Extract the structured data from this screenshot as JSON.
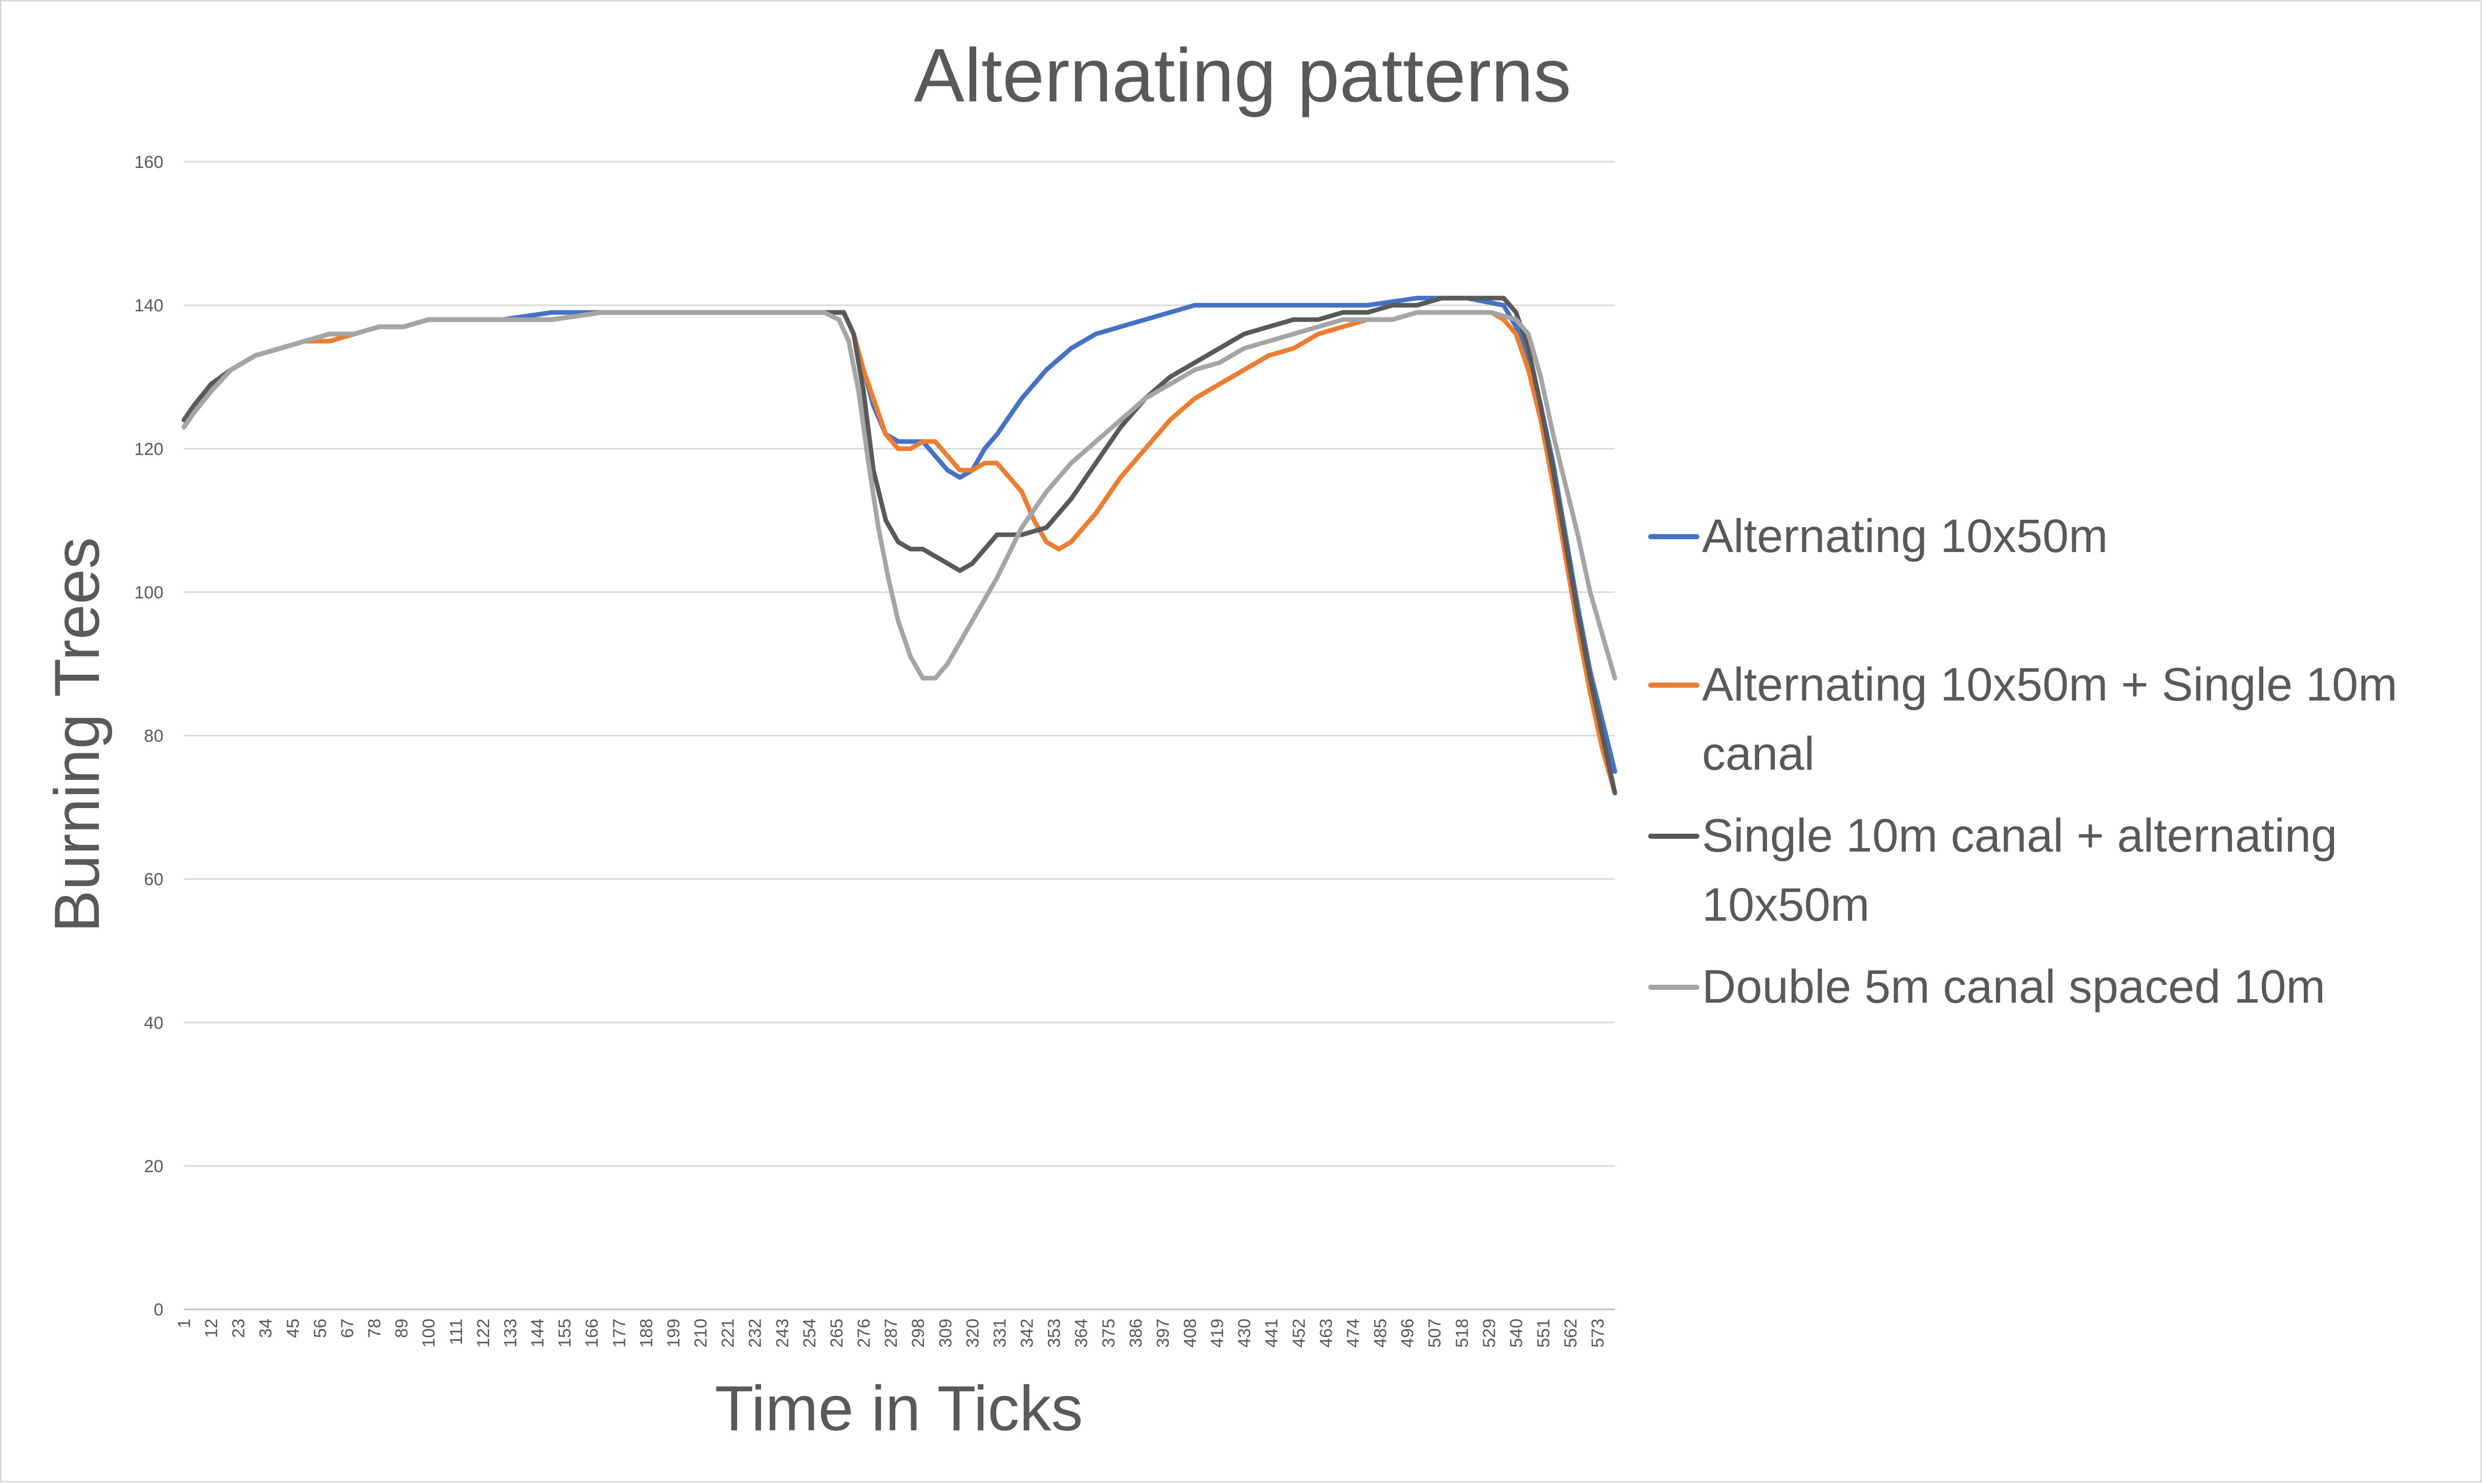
{
  "chart_data": {
    "type": "line",
    "title": "Alternating patterns",
    "xlabel": "Time in Ticks",
    "ylabel": "Burning Trees",
    "ylim": [
      0,
      160
    ],
    "xlim": [
      1,
      580
    ],
    "yticks": [
      0,
      20,
      40,
      60,
      80,
      100,
      120,
      140,
      160
    ],
    "xticks": [
      1,
      12,
      23,
      34,
      45,
      56,
      67,
      78,
      89,
      100,
      111,
      122,
      133,
      144,
      155,
      166,
      177,
      188,
      199,
      210,
      221,
      232,
      243,
      254,
      265,
      276,
      287,
      298,
      309,
      320,
      331,
      342,
      353,
      364,
      375,
      386,
      397,
      408,
      419,
      430,
      441,
      452,
      463,
      474,
      485,
      496,
      507,
      518,
      529,
      540,
      551,
      562,
      573
    ],
    "grid": true,
    "legend_position": "right",
    "series": [
      {
        "name": "Alternating 10x50m",
        "color": "#4472C4",
        "x": [
          1,
          5,
          12,
          20,
          30,
          40,
          50,
          60,
          70,
          80,
          90,
          100,
          110,
          130,
          150,
          170,
          200,
          230,
          260,
          268,
          272,
          276,
          280,
          285,
          290,
          300,
          305,
          310,
          315,
          320,
          325,
          330,
          340,
          350,
          360,
          370,
          380,
          390,
          400,
          410,
          420,
          440,
          460,
          480,
          500,
          520,
          535,
          540,
          545,
          550,
          555,
          560,
          565,
          570,
          575,
          580
        ],
        "y": [
          123,
          125,
          128,
          131,
          133,
          134,
          135,
          136,
          136,
          137,
          137,
          138,
          138,
          138,
          139,
          139,
          139,
          139,
          139,
          139,
          136,
          131,
          126,
          122,
          121,
          121,
          119,
          117,
          116,
          117,
          120,
          122,
          127,
          131,
          134,
          136,
          137,
          138,
          139,
          140,
          140,
          140,
          140,
          140,
          141,
          141,
          140,
          137,
          132,
          126,
          118,
          108,
          98,
          89,
          82,
          75
        ]
      },
      {
        "name": "Alternating 10x50m + Single 10m canal",
        "color": "#ED7D31",
        "x": [
          1,
          5,
          12,
          20,
          30,
          40,
          50,
          60,
          70,
          80,
          90,
          100,
          110,
          130,
          150,
          170,
          200,
          230,
          260,
          268,
          272,
          276,
          280,
          285,
          290,
          295,
          300,
          305,
          310,
          315,
          320,
          325,
          330,
          340,
          345,
          350,
          355,
          360,
          365,
          370,
          380,
          390,
          400,
          410,
          420,
          430,
          440,
          450,
          460,
          470,
          480,
          490,
          500,
          510,
          520,
          530,
          535,
          540,
          545,
          550,
          555,
          560,
          565,
          570,
          575,
          580
        ],
        "y": [
          123,
          125,
          128,
          131,
          133,
          134,
          135,
          135,
          136,
          137,
          137,
          138,
          138,
          138,
          138,
          139,
          139,
          139,
          139,
          139,
          136,
          131,
          127,
          122,
          120,
          120,
          121,
          121,
          119,
          117,
          117,
          118,
          118,
          114,
          110,
          107,
          106,
          107,
          109,
          111,
          116,
          120,
          124,
          127,
          129,
          131,
          133,
          134,
          136,
          137,
          138,
          138,
          139,
          139,
          139,
          139,
          138,
          136,
          131,
          124,
          115,
          105,
          95,
          86,
          78,
          72
        ]
      },
      {
        "name": "Single 10m canal + alternating 10x50m",
        "color": "#595959",
        "x": [
          1,
          5,
          12,
          20,
          30,
          40,
          50,
          60,
          70,
          80,
          90,
          100,
          110,
          130,
          150,
          170,
          200,
          230,
          260,
          268,
          272,
          276,
          280,
          285,
          290,
          295,
          300,
          305,
          310,
          315,
          320,
          325,
          330,
          340,
          350,
          360,
          370,
          380,
          390,
          400,
          410,
          420,
          430,
          440,
          450,
          460,
          470,
          480,
          490,
          500,
          510,
          520,
          530,
          535,
          540,
          545,
          550,
          555,
          560,
          565,
          570,
          575,
          580
        ],
        "y": [
          124,
          126,
          129,
          131,
          133,
          134,
          135,
          136,
          136,
          137,
          137,
          138,
          138,
          138,
          138,
          139,
          139,
          139,
          139,
          139,
          136,
          128,
          117,
          110,
          107,
          106,
          106,
          105,
          104,
          103,
          104,
          106,
          108,
          108,
          109,
          113,
          118,
          123,
          127,
          130,
          132,
          134,
          136,
          137,
          138,
          138,
          139,
          139,
          140,
          140,
          141,
          141,
          141,
          141,
          139,
          134,
          126,
          117,
          107,
          97,
          88,
          80,
          72
        ]
      },
      {
        "name": "Double 5m canal spaced 10m",
        "color": "#A5A5A5",
        "x": [
          1,
          5,
          12,
          20,
          30,
          40,
          50,
          60,
          70,
          80,
          90,
          100,
          110,
          130,
          150,
          170,
          200,
          230,
          260,
          266,
          270,
          274,
          278,
          282,
          286,
          290,
          295,
          300,
          305,
          310,
          315,
          320,
          325,
          330,
          340,
          350,
          360,
          370,
          380,
          390,
          400,
          410,
          420,
          430,
          440,
          450,
          460,
          470,
          480,
          490,
          500,
          510,
          520,
          530,
          540,
          545,
          550,
          555,
          560,
          565,
          570,
          575,
          580
        ],
        "y": [
          123,
          125,
          128,
          131,
          133,
          134,
          135,
          136,
          136,
          137,
          137,
          138,
          138,
          138,
          138,
          139,
          139,
          139,
          139,
          138,
          135,
          128,
          118,
          109,
          102,
          96,
          91,
          88,
          88,
          90,
          93,
          96,
          99,
          102,
          109,
          114,
          118,
          121,
          124,
          127,
          129,
          131,
          132,
          134,
          135,
          136,
          137,
          138,
          138,
          138,
          139,
          139,
          139,
          139,
          138,
          136,
          130,
          122,
          115,
          108,
          100,
          94,
          88
        ]
      }
    ]
  }
}
